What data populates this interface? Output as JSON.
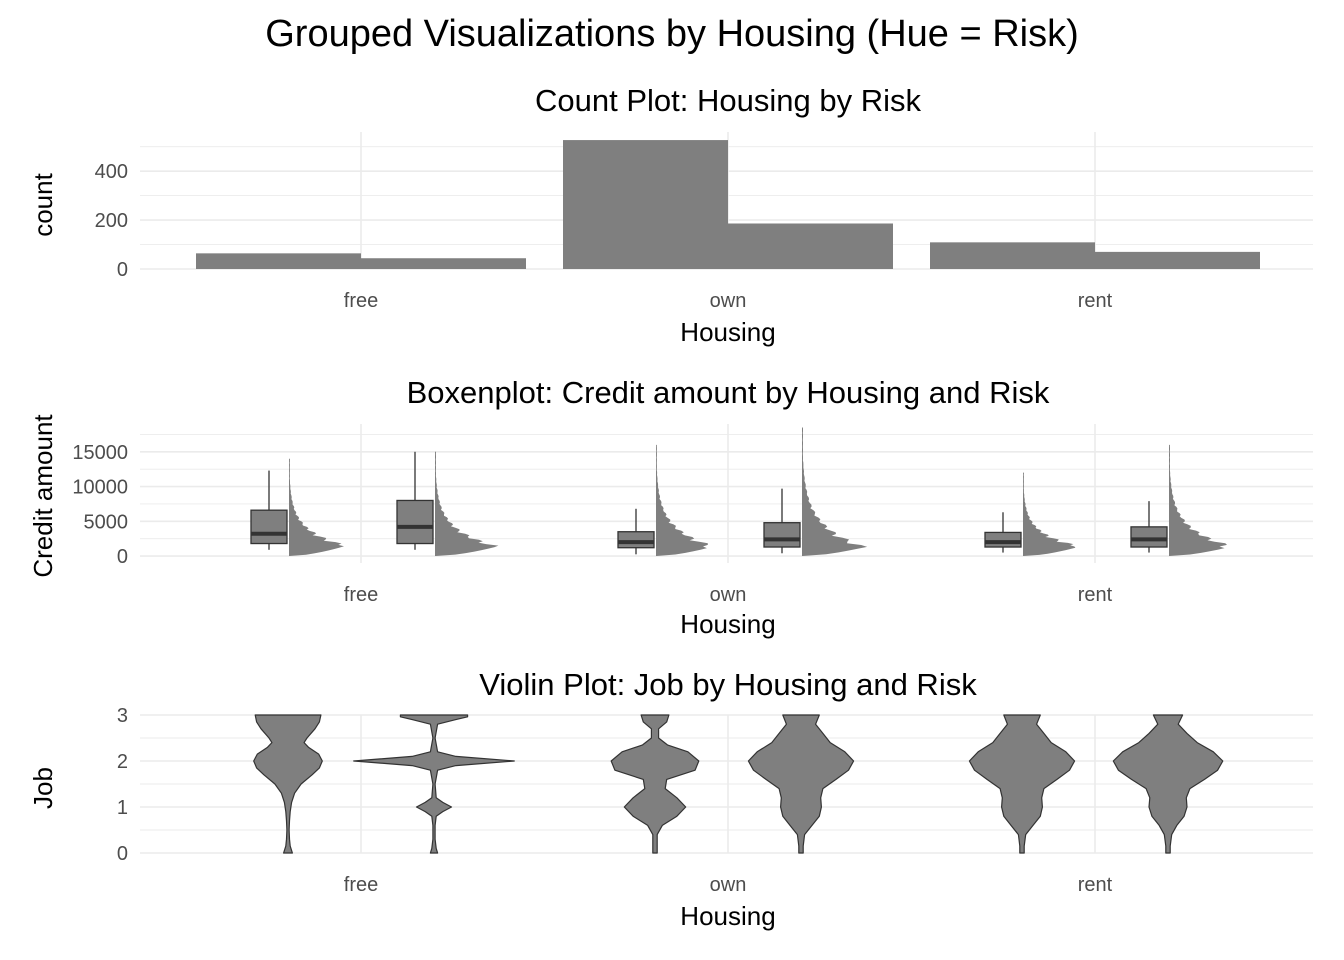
{
  "figure": {
    "title": "Grouped Visualizations by Housing (Hue = Risk)"
  },
  "chart_data": [
    {
      "type": "bar",
      "title": "Count Plot: Housing by Risk",
      "xlabel": "Housing",
      "ylabel": "count",
      "categories": [
        "free",
        "own",
        "rent"
      ],
      "ylim": [
        0,
        560
      ],
      "yticks": [
        0,
        200,
        400
      ],
      "grid": true,
      "bar_color": "#7f7f7f",
      "series": [
        {
          "values": [
            64,
            527,
            109
          ]
        },
        {
          "values": [
            44,
            186,
            70
          ]
        }
      ]
    },
    {
      "type": "boxen",
      "title": "Boxenplot: Credit amount by Housing and Risk",
      "xlabel": "Housing",
      "ylabel": "Credit amount",
      "categories": [
        "free",
        "own",
        "rent"
      ],
      "ylim": [
        -1000,
        19000
      ],
      "yticks": [
        0,
        5000,
        10000,
        15000
      ],
      "yticklabels": [
        "0",
        "5000",
        "10000",
        "15000"
      ],
      "grid": true,
      "fill_color": "#7f7f7f",
      "groups": [
        {
          "category": "free",
          "box": {
            "min": 900,
            "q1": 1800,
            "median": 3200,
            "q3": 6600,
            "whisker_high": 12300
          },
          "dist_max": 14000,
          "dist_peak": 1400
        },
        {
          "category": "free",
          "box": {
            "min": 900,
            "q1": 1800,
            "median": 4200,
            "q3": 8000,
            "whisker_high": 15000
          },
          "dist_max": 15000,
          "dist_peak": 1300
        },
        {
          "category": "own",
          "box": {
            "min": 250,
            "q1": 1200,
            "median": 2000,
            "q3": 3500,
            "whisker_high": 6800
          },
          "dist_max": 16000,
          "dist_peak": 1300
        },
        {
          "category": "own",
          "box": {
            "min": 400,
            "q1": 1300,
            "median": 2400,
            "q3": 4800,
            "whisker_high": 9700
          },
          "dist_max": 18500,
          "dist_peak": 1200
        },
        {
          "category": "rent",
          "box": {
            "min": 500,
            "q1": 1300,
            "median": 2000,
            "q3": 3400,
            "whisker_high": 6300
          },
          "dist_max": 12000,
          "dist_peak": 1300
        },
        {
          "category": "rent",
          "box": {
            "min": 500,
            "q1": 1300,
            "median": 2400,
            "q3": 4200,
            "whisker_high": 7900
          },
          "dist_max": 16000,
          "dist_peak": 1300
        }
      ]
    },
    {
      "type": "violin",
      "title": "Violin Plot: Job by Housing and Risk",
      "xlabel": "Housing",
      "ylabel": "Job",
      "categories": [
        "free",
        "own",
        "rent"
      ],
      "ylim": [
        0,
        3
      ],
      "yticks": [
        0,
        1,
        2,
        3
      ],
      "grid": true,
      "fill_color": "#7f7f7f",
      "groups": [
        {
          "category": "free",
          "density": [
            [
              0,
              0.06
            ],
            [
              0.15,
              0.03
            ],
            [
              0.3,
              0.02
            ],
            [
              0.5,
              0.015
            ],
            [
              0.7,
              0.02
            ],
            [
              0.9,
              0.03
            ],
            [
              1,
              0.04
            ],
            [
              1.1,
              0.05
            ],
            [
              1.3,
              0.09
            ],
            [
              1.5,
              0.18
            ],
            [
              1.7,
              0.33
            ],
            [
              1.85,
              0.43
            ],
            [
              2,
              0.47
            ],
            [
              2.15,
              0.42
            ],
            [
              2.3,
              0.28
            ],
            [
              2.4,
              0.22
            ],
            [
              2.5,
              0.26
            ],
            [
              2.7,
              0.37
            ],
            [
              2.85,
              0.43
            ],
            [
              3,
              0.45
            ]
          ]
        },
        {
          "category": "free",
          "density": [
            [
              0,
              0.05
            ],
            [
              0.1,
              0.03
            ],
            [
              0.3,
              0.015
            ],
            [
              0.6,
              0.015
            ],
            [
              0.8,
              0.03
            ],
            [
              0.9,
              0.12
            ],
            [
              1,
              0.24
            ],
            [
              1.1,
              0.12
            ],
            [
              1.2,
              0.03
            ],
            [
              1.5,
              0.015
            ],
            [
              1.8,
              0.05
            ],
            [
              1.9,
              0.3
            ],
            [
              2,
              1.1
            ],
            [
              2.1,
              0.3
            ],
            [
              2.2,
              0.05
            ],
            [
              2.5,
              0.015
            ],
            [
              2.8,
              0.05
            ],
            [
              2.9,
              0.3
            ],
            [
              2.96,
              0.46
            ],
            [
              3,
              0.46
            ]
          ]
        },
        {
          "category": "own",
          "density": [
            [
              0,
              0.03
            ],
            [
              0.15,
              0.03
            ],
            [
              0.4,
              0.03
            ],
            [
              0.6,
              0.1
            ],
            [
              0.8,
              0.3
            ],
            [
              1,
              0.42
            ],
            [
              1.2,
              0.3
            ],
            [
              1.4,
              0.14
            ],
            [
              1.6,
              0.16
            ],
            [
              1.8,
              0.55
            ],
            [
              2,
              0.6
            ],
            [
              2.2,
              0.45
            ],
            [
              2.35,
              0.17
            ],
            [
              2.5,
              0.05
            ],
            [
              2.7,
              0.05
            ],
            [
              2.85,
              0.16
            ],
            [
              3,
              0.19
            ]
          ]
        },
        {
          "category": "own",
          "density": [
            [
              0,
              0.03
            ],
            [
              0.15,
              0.03
            ],
            [
              0.4,
              0.05
            ],
            [
              0.6,
              0.15
            ],
            [
              0.8,
              0.25
            ],
            [
              1,
              0.28
            ],
            [
              1.2,
              0.27
            ],
            [
              1.4,
              0.3
            ],
            [
              1.6,
              0.48
            ],
            [
              1.8,
              0.65
            ],
            [
              2,
              0.72
            ],
            [
              2.2,
              0.6
            ],
            [
              2.4,
              0.4
            ],
            [
              2.6,
              0.3
            ],
            [
              2.8,
              0.2
            ],
            [
              3,
              0.25
            ]
          ]
        },
        {
          "category": "rent",
          "density": [
            [
              0,
              0.03
            ],
            [
              0.15,
              0.03
            ],
            [
              0.4,
              0.05
            ],
            [
              0.6,
              0.15
            ],
            [
              0.8,
              0.25
            ],
            [
              1,
              0.28
            ],
            [
              1.2,
              0.27
            ],
            [
              1.4,
              0.3
            ],
            [
              1.6,
              0.48
            ],
            [
              1.8,
              0.65
            ],
            [
              2,
              0.72
            ],
            [
              2.2,
              0.6
            ],
            [
              2.4,
              0.4
            ],
            [
              2.6,
              0.3
            ],
            [
              2.8,
              0.2
            ],
            [
              3,
              0.25
            ]
          ]
        },
        {
          "category": "rent",
          "density": [
            [
              0,
              0.03
            ],
            [
              0.15,
              0.03
            ],
            [
              0.4,
              0.05
            ],
            [
              0.6,
              0.12
            ],
            [
              0.8,
              0.22
            ],
            [
              1,
              0.26
            ],
            [
              1.2,
              0.25
            ],
            [
              1.4,
              0.3
            ],
            [
              1.6,
              0.5
            ],
            [
              1.8,
              0.68
            ],
            [
              2,
              0.75
            ],
            [
              2.2,
              0.62
            ],
            [
              2.4,
              0.4
            ],
            [
              2.6,
              0.26
            ],
            [
              2.8,
              0.14
            ],
            [
              3,
              0.2
            ]
          ]
        }
      ]
    }
  ]
}
